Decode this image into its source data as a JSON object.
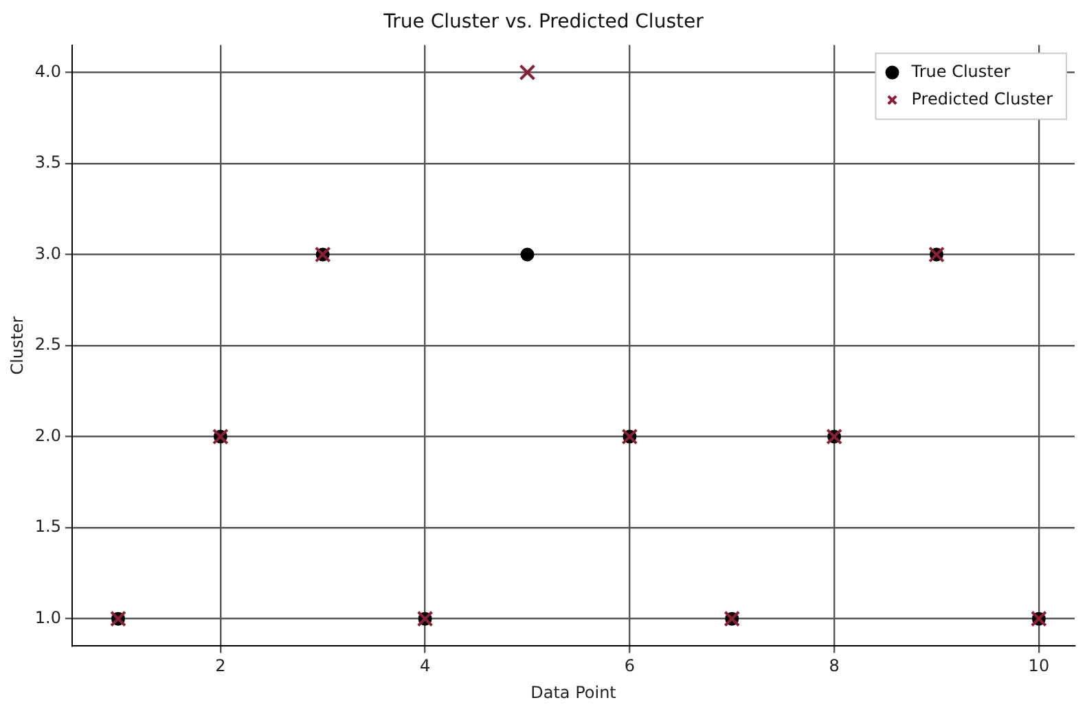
{
  "chart_data": {
    "type": "scatter",
    "title": "True Cluster vs. Predicted Cluster",
    "xlabel": "Data Point",
    "ylabel": "Cluster",
    "x": [
      1,
      2,
      3,
      4,
      5,
      6,
      7,
      8,
      9,
      10
    ],
    "series": [
      {
        "name": "True Cluster",
        "color": "#000000",
        "marker": "circle",
        "values": [
          1,
          2,
          3,
          1,
          3,
          2,
          1,
          2,
          3,
          1
        ]
      },
      {
        "name": "Predicted Cluster",
        "color": "#8a2038",
        "marker": "cross",
        "values": [
          1,
          2,
          3,
          1,
          4,
          2,
          1,
          2,
          3,
          1
        ]
      }
    ],
    "xlim": [
      0.55,
      10.35
    ],
    "xticks": [
      2,
      4,
      6,
      8,
      10
    ],
    "ylim": [
      0.85,
      4.15
    ],
    "yticks": [
      {
        "value": 1,
        "label": "1.0"
      },
      {
        "value": 1.5,
        "label": "1.5"
      },
      {
        "value": 2,
        "label": "2.0"
      },
      {
        "value": 2.5,
        "label": "2.5"
      },
      {
        "value": 3,
        "label": "3.0"
      },
      {
        "value": 3.5,
        "label": "3.5"
      },
      {
        "value": 4,
        "label": "4.0"
      }
    ],
    "grid": true,
    "legend": "top right"
  }
}
